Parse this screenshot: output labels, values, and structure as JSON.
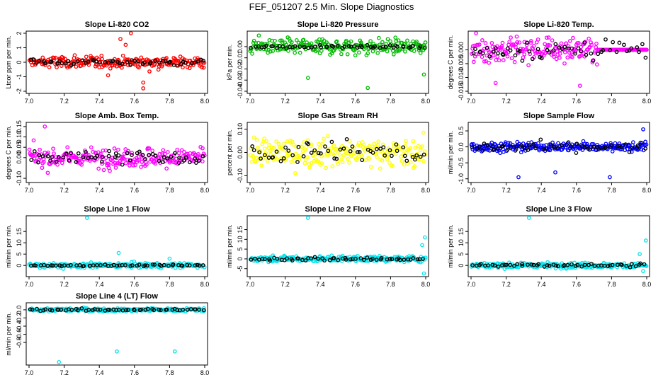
{
  "figure_title": "FEF_051207  2.5 Min. Slope Diagnostics",
  "colors": {
    "black": "#000000"
  },
  "chart_data": [
    {
      "type": "scatter",
      "title": "Slope Li-820 CO2",
      "ylabel": "Ltcor ppm per min.",
      "color": "#ff0000",
      "xlim": [
        7.0,
        8.0
      ],
      "ylim": [
        -2.0,
        2.0
      ],
      "xticks": [
        "7.0",
        "7.2",
        "7.4",
        "7.6",
        "7.8",
        "8.0"
      ],
      "yticks": [
        -2,
        -1,
        0,
        1,
        2
      ],
      "ytick_labels": [
        "-2",
        "-1",
        "0",
        "1",
        "2"
      ],
      "spread": 0.35,
      "black_spread": 0.2,
      "outliers": [
        [
          7.58,
          2.0
        ],
        [
          7.55,
          1.2
        ],
        [
          7.65,
          -1.8
        ],
        [
          7.65,
          -1.4
        ],
        [
          7.45,
          -0.9
        ],
        [
          7.52,
          1.6
        ]
      ],
      "tail": null
    },
    {
      "type": "scatter",
      "title": "Slope Li-820 Pressure",
      "ylabel": "kPa per min.",
      "color": "#00bb00",
      "xlim": [
        7.0,
        8.0
      ],
      "ylim": [
        -0.04,
        0.012
      ],
      "xticks": [
        "7.0",
        "7.2",
        "7.4",
        "7.6",
        "7.8",
        "8.0"
      ],
      "yticks": [
        -0.04,
        -0.03,
        -0.02,
        -0.01,
        0.0
      ],
      "ytick_labels": [
        "-0.04",
        "-0.03",
        "-0.02",
        "-0.01",
        "0.00"
      ],
      "spread": 0.006,
      "black_spread": 0.001,
      "outliers": [
        [
          7.33,
          -0.028
        ],
        [
          7.67,
          -0.037
        ],
        [
          7.99,
          -0.025
        ],
        [
          7.05,
          0.01
        ]
      ],
      "tail": null
    },
    {
      "type": "scatter",
      "title": "Slope Li-820 Temp.",
      "ylabel": "degrees C per min.",
      "color": "#ff00ff",
      "xlim": [
        7.0,
        8.0
      ],
      "ylim": [
        -0.015,
        0.006
      ],
      "xticks": [
        "7.0",
        "7.2",
        "7.4",
        "7.6",
        "7.8",
        "8.0"
      ],
      "yticks": [
        -0.015,
        -0.01,
        -0.005,
        0.0
      ],
      "ytick_labels": [
        "-0.015",
        "-0.010",
        "-0.005",
        "0.000"
      ],
      "spread": 0.004,
      "black_spread": 0.003,
      "outliers": [
        [
          7.62,
          -0.013
        ],
        [
          7.14,
          -0.012
        ]
      ],
      "tail": [
        7.72,
        8.0
      ]
    },
    {
      "type": "scatter",
      "title": "Slope Amb. Box Temp.",
      "ylabel": "degrees C per min.",
      "color": "#ff00ff",
      "xlim": [
        7.0,
        8.0
      ],
      "ylim": [
        -0.11,
        0.16
      ],
      "xticks": [
        "7.0",
        "7.2",
        "7.4",
        "7.6",
        "7.8",
        "8.0"
      ],
      "yticks": [
        -0.1,
        0.0,
        0.05,
        0.1,
        0.15
      ],
      "ytick_labels": [
        "-0.10",
        "0.00",
        "0.05",
        "0.10",
        "0.15"
      ],
      "spread": 0.04,
      "black_spread": 0.03,
      "outliers": [
        [
          7.09,
          0.15
        ]
      ],
      "tail": null
    },
    {
      "type": "scatter",
      "title": "Slope Gas Stream RH",
      "ylabel": "percent per min.",
      "color": "#ffff00",
      "xlim": [
        7.0,
        8.0
      ],
      "ylim": [
        -0.12,
        0.12
      ],
      "xticks": [
        "7.0",
        "7.2",
        "7.4",
        "7.6",
        "7.8",
        "8.0"
      ],
      "yticks": [
        -0.1,
        0.0,
        0.1
      ],
      "ytick_labels": [
        "-0.10",
        "0.00",
        "0.10"
      ],
      "spread": 0.05,
      "black_spread": 0.045,
      "outliers": [],
      "tail": null
    },
    {
      "type": "scatter",
      "title": "Slope Sample Flow",
      "ylabel": "ml/min per min.",
      "color": "#0000ff",
      "xlim": [
        7.0,
        8.0
      ],
      "ylim": [
        -1.05,
        0.7
      ],
      "xticks": [
        "7.0",
        "7.2",
        "7.4",
        "7.6",
        "7.8",
        "8.0"
      ],
      "yticks": [
        -1.0,
        -0.5,
        0.0,
        0.5
      ],
      "ytick_labels": [
        "-1.0",
        "-0.5",
        "0.0",
        "0.5"
      ],
      "spread": 0.12,
      "black_spread": 0.15,
      "outliers": [
        [
          7.27,
          -0.95
        ],
        [
          7.48,
          -0.8
        ],
        [
          7.79,
          -0.95
        ],
        [
          7.98,
          0.55
        ]
      ],
      "tail": null
    },
    {
      "type": "scatter",
      "title": "Slope Line 1 Flow",
      "ylabel": "ml/min per min.",
      "color": "#00e5ee",
      "xlim": [
        7.0,
        8.0
      ],
      "ylim": [
        -4,
        21
      ],
      "xticks": [
        "7.0",
        "7.2",
        "7.4",
        "7.6",
        "7.8",
        "8.0"
      ],
      "yticks": [
        0,
        5,
        10,
        15
      ],
      "ytick_labels": [
        "0",
        "5",
        "10",
        "15"
      ],
      "spread": 0.9,
      "black_spread": 0.3,
      "outliers": [
        [
          7.33,
          21
        ],
        [
          7.51,
          5.5
        ],
        [
          7.8,
          3.0
        ]
      ],
      "tail": null
    },
    {
      "type": "scatter",
      "title": "Slope Line 2 Flow",
      "ylabel": "ml/min per min.",
      "color": "#00e5ee",
      "xlim": [
        7.0,
        8.0
      ],
      "ylim": [
        -8,
        21
      ],
      "xticks": [
        "7.0",
        "7.2",
        "7.4",
        "7.6",
        "7.8",
        "8.0"
      ],
      "yticks": [
        -5,
        0,
        5,
        10,
        15
      ],
      "ytick_labels": [
        "-5",
        "0",
        "5",
        "10",
        "15"
      ],
      "spread": 1.2,
      "black_spread": 0.8,
      "outliers": [
        [
          7.33,
          21
        ],
        [
          7.99,
          -7.5
        ],
        [
          7.995,
          11
        ],
        [
          7.98,
          7
        ]
      ],
      "tail": null
    },
    {
      "type": "scatter",
      "title": "Slope Line 3 Flow",
      "ylabel": "ml/min per min.",
      "color": "#00e5ee",
      "xlim": [
        7.0,
        8.0
      ],
      "ylim": [
        -4,
        21
      ],
      "xticks": [
        "7.0",
        "7.2",
        "7.4",
        "7.6",
        "7.8",
        "8.0"
      ],
      "yticks": [
        0,
        5,
        10,
        15
      ],
      "ytick_labels": [
        "0",
        "5",
        "10",
        "15"
      ],
      "spread": 1.0,
      "black_spread": 0.7,
      "outliers": [
        [
          7.33,
          21
        ],
        [
          7.995,
          11
        ],
        [
          7.98,
          -2.5
        ],
        [
          7.96,
          5
        ]
      ],
      "tail": null
    },
    {
      "type": "scatter",
      "title": "Slope Line 4 (LT) Flow",
      "ylabel": "ml/min per min.",
      "color": "#00e5ee",
      "xlim": [
        7.0,
        8.0
      ],
      "ylim": [
        -1.3,
        0.12
      ],
      "xticks": [
        "7.0",
        "7.2",
        "7.4",
        "7.6",
        "7.8",
        "8.0"
      ],
      "yticks": [
        -0.8,
        -0.6,
        -0.4,
        -0.2,
        0.0
      ],
      "ytick_labels": [
        "-0.8",
        "-0.6",
        "-0.4",
        "-0.2",
        "0.0"
      ],
      "spread": 0.035,
      "black_spread": 0.02,
      "outliers": [
        [
          7.17,
          -1.28
        ],
        [
          7.5,
          -1.02
        ],
        [
          7.83,
          -1.02
        ]
      ],
      "tail": null
    }
  ]
}
